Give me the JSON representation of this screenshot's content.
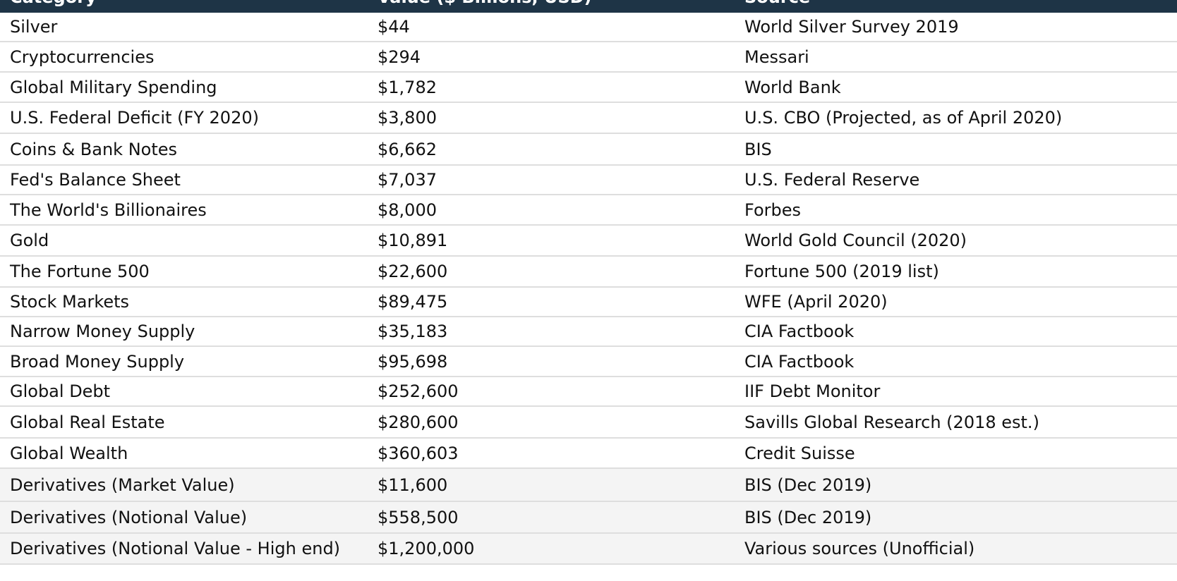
{
  "table": {
    "header": [
      "Category",
      "Value ($ Billions, USD)",
      "Source"
    ],
    "rows": [
      [
        "Silver",
        "$44",
        "World Silver Survey 2019"
      ],
      [
        "Cryptocurrencies",
        "$294",
        "Messari"
      ],
      [
        "Global Military Spending",
        "$1,782",
        "World Bank"
      ],
      [
        "U.S. Federal Deficit (FY 2020)",
        "$3,800",
        "U.S. CBO (Projected, as of April 2020)"
      ],
      [
        "Coins & Bank Notes",
        "$6,662",
        "BIS"
      ],
      [
        "Fed's Balance Sheet",
        "$7,037",
        "U.S. Federal Reserve"
      ],
      [
        "The World's Billionaires",
        "$8,000",
        "Forbes"
      ],
      [
        "Gold",
        "$10,891",
        "World Gold Council (2020)"
      ],
      [
        "The Fortune 500",
        "$22,600",
        "Fortune 500 (2019 list)"
      ],
      [
        "Stock Markets",
        "$89,475",
        "WFE (April 2020)"
      ],
      [
        "Narrow Money Supply",
        "$35,183",
        "CIA Factbook"
      ],
      [
        "Broad Money Supply",
        "$95,698",
        "CIA Factbook"
      ],
      [
        "Global Debt",
        "$252,600",
        "IIF Debt Monitor"
      ],
      [
        "Global Real Estate",
        "$280,600",
        "Savills Global Research (2018 est.)"
      ],
      [
        "Global Wealth",
        "$360,603",
        "Credit Suisse"
      ],
      [
        "Derivatives (Market Value)",
        "$11,600",
        "BIS (Dec 2019)"
      ],
      [
        "Derivatives (Notional Value)",
        "$558,500",
        "BIS (Dec 2019)"
      ],
      [
        "Derivatives (Notional Value - High end)",
        "$1,200,000",
        "Various sources (Unofficial)"
      ]
    ]
  }
}
